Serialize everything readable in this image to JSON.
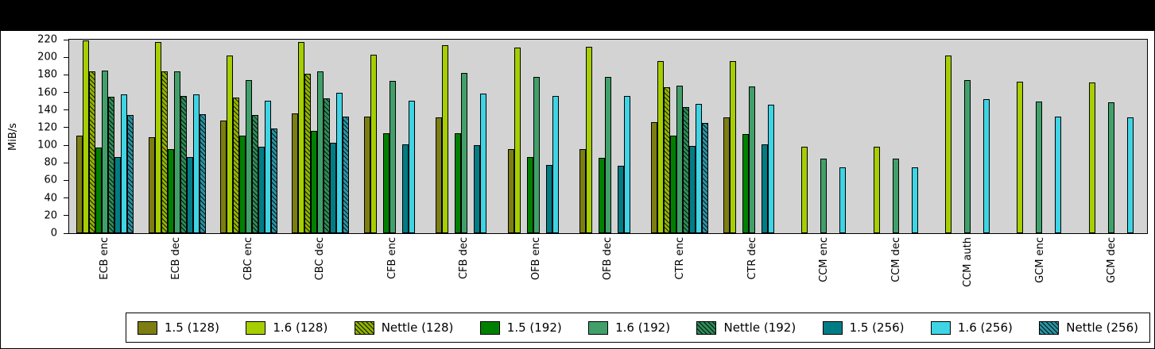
{
  "chart_data": {
    "type": "bar",
    "title": "",
    "ylabel": "MiB/s",
    "xlabel": "",
    "ylim": [
      0,
      220
    ],
    "yticks": [
      0,
      20,
      40,
      60,
      80,
      100,
      120,
      140,
      160,
      180,
      200,
      220
    ],
    "grid": false,
    "plot_bg": "#d3d3d3",
    "legend_position": "bottom",
    "categories": [
      "ECB enc",
      "ECB dec",
      "CBC enc",
      "CBC dec",
      "CFB enc",
      "CFB dec",
      "OFB enc",
      "OFB dec",
      "CTR enc",
      "CTR dec",
      "CCM enc",
      "CCM dec",
      "CCM auth",
      "GCM enc",
      "GCM dec"
    ],
    "series": [
      {
        "name": "1.5 (128)",
        "color": "#7d7d12",
        "hatch": false,
        "values": [
          111,
          109,
          128,
          136,
          133,
          132,
          96,
          96,
          126,
          132,
          null,
          null,
          null,
          null,
          null
        ]
      },
      {
        "name": "1.6 (128)",
        "color": "#a6ce00",
        "hatch": false,
        "values": [
          219,
          217,
          202,
          217,
          203,
          214,
          211,
          212,
          196,
          196,
          98,
          98,
          202,
          172,
          171
        ]
      },
      {
        "name": "Nettle (128)",
        "color": "#90b300",
        "hatch": true,
        "values": [
          184,
          184,
          154,
          181,
          null,
          null,
          null,
          null,
          166,
          null,
          null,
          null,
          null,
          null,
          null
        ]
      },
      {
        "name": "1.5 (192)",
        "color": "#008000",
        "hatch": false,
        "values": [
          97,
          96,
          111,
          116,
          114,
          114,
          87,
          86,
          111,
          113,
          null,
          null,
          null,
          null,
          null
        ]
      },
      {
        "name": "1.6 (192)",
        "color": "#41a06a",
        "hatch": false,
        "values": [
          185,
          184,
          174,
          184,
          173,
          182,
          178,
          178,
          168,
          167,
          85,
          85,
          174,
          150,
          149
        ]
      },
      {
        "name": "Nettle (192)",
        "color": "#2e8b57",
        "hatch": true,
        "values": [
          155,
          156,
          134,
          153,
          null,
          null,
          null,
          null,
          143,
          null,
          null,
          null,
          null,
          null,
          null
        ]
      },
      {
        "name": "1.5 (256)",
        "color": "#007c84",
        "hatch": false,
        "values": [
          87,
          87,
          98,
          103,
          101,
          100,
          78,
          77,
          99,
          101,
          null,
          null,
          null,
          null,
          null
        ]
      },
      {
        "name": "1.6 (256)",
        "color": "#3fd4e4",
        "hatch": false,
        "values": [
          158,
          158,
          151,
          160,
          151,
          159,
          156,
          156,
          147,
          146,
          75,
          75,
          152,
          133,
          132
        ]
      },
      {
        "name": "Nettle (256)",
        "color": "#2b93a3",
        "hatch": true,
        "values": [
          134,
          135,
          119,
          133,
          null,
          null,
          null,
          null,
          125,
          null,
          null,
          null,
          null,
          null,
          null
        ]
      }
    ]
  }
}
